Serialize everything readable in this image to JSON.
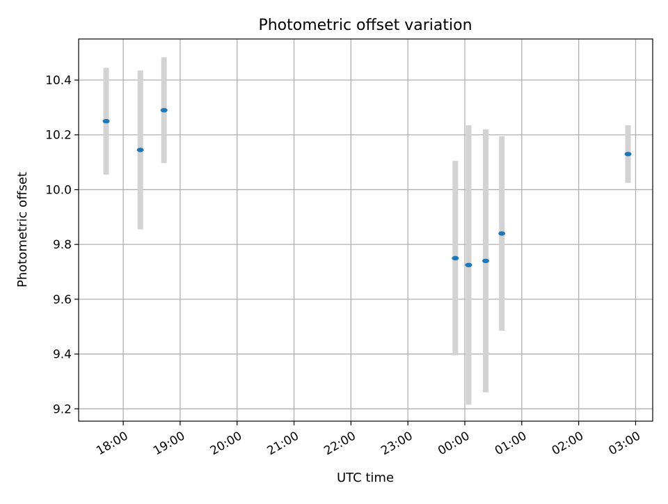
{
  "chart_data": {
    "type": "scatter",
    "title": "Photometric offset variation",
    "xlabel": "UTC time",
    "ylabel": "Photometric offset",
    "x_tick_labels": [
      "18:00",
      "19:00",
      "20:00",
      "21:00",
      "22:00",
      "23:00",
      "00:00",
      "01:00",
      "02:00",
      "03:00"
    ],
    "y_tick_labels": [
      "9.2",
      "9.4",
      "9.6",
      "9.8",
      "10.0",
      "10.2",
      "10.4"
    ],
    "x_tick_times": [
      "18:00",
      "19:00",
      "20:00",
      "21:00",
      "22:00",
      "23:00",
      "00:00",
      "01:00",
      "02:00",
      "03:00"
    ],
    "y_ticks": [
      9.2,
      9.4,
      9.6,
      9.8,
      10.0,
      10.2,
      10.4
    ],
    "xlim": [
      "17:13",
      "03:18"
    ],
    "ylim": [
      9.155,
      10.55
    ],
    "grid": true,
    "colors": {
      "point": "#1f77b4",
      "errorbar": "#d3d3d3",
      "grid": "#b0b0b0",
      "axes": "#000000"
    },
    "series": [
      {
        "x": [
          "17:42",
          "18:18",
          "18:43",
          "23:50",
          "00:04",
          "00:22",
          "00:39",
          "02:52"
        ],
        "y": [
          10.25,
          10.145,
          10.29,
          9.75,
          9.725,
          9.74,
          9.84,
          10.13
        ],
        "yerr": [
          0.195,
          0.29,
          0.193,
          0.355,
          0.51,
          0.48,
          0.355,
          0.105
        ]
      }
    ]
  }
}
